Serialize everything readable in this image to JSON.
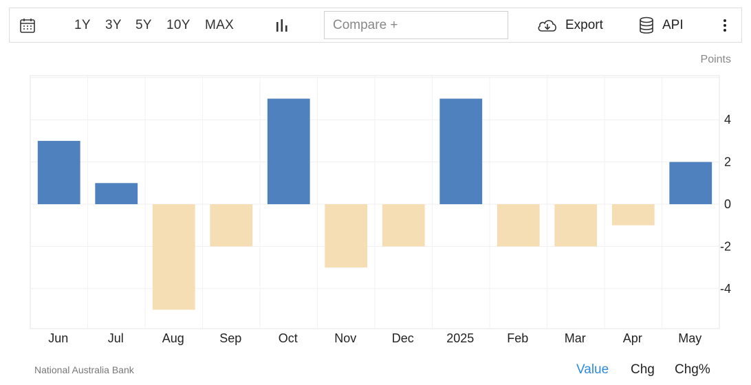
{
  "toolbar": {
    "ranges": [
      "1Y",
      "3Y",
      "5Y",
      "10Y",
      "MAX"
    ],
    "compare_placeholder": "Compare +",
    "export_label": "Export",
    "api_label": "API",
    "icons": [
      "calendar-icon",
      "bar-chart-icon",
      "cloud-download-icon",
      "database-icon",
      "more-vertical-icon"
    ]
  },
  "chart_data": {
    "type": "bar",
    "categories": [
      "Jun",
      "Jul",
      "Aug",
      "Sep",
      "Oct",
      "Nov",
      "Dec",
      "2025",
      "Feb",
      "Mar",
      "Apr",
      "May"
    ],
    "values": [
      3,
      1,
      -5,
      -2,
      5,
      -3,
      -2,
      5,
      -2,
      -2,
      -1,
      2
    ],
    "ylabel": "Points",
    "yticks": [
      4,
      2,
      0,
      -2,
      -4
    ],
    "ylim": [
      -6,
      6
    ],
    "grid": true,
    "positive_color": "#4e81bd",
    "negative_color": "#f5deb3"
  },
  "footer": {
    "source": "National Australia Bank",
    "tabs": [
      "Value",
      "Chg",
      "Chg%"
    ],
    "active_tab": "Value"
  }
}
